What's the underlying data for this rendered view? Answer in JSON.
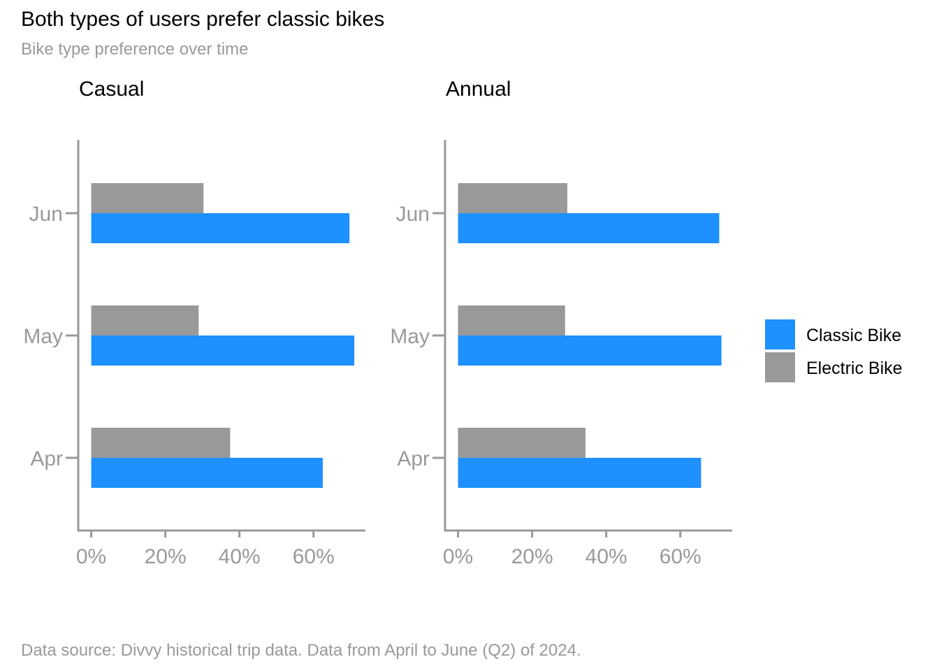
{
  "chart_data": {
    "type": "bar",
    "orientation": "horizontal",
    "title": "Both types of users prefer classic bikes",
    "subtitle": "Bike type preference over time",
    "caption": "Data source: Divvy historical trip data. Data from April to June (Q2) of 2024.",
    "categories": [
      "Apr",
      "May",
      "Jun"
    ],
    "x_ticks": [
      "0%",
      "20%",
      "40%",
      "60%"
    ],
    "x_tick_values": [
      0,
      20,
      40,
      60
    ],
    "xlim": [
      -3.5,
      74
    ],
    "legend_position": "right",
    "legend": [
      {
        "name": "Classic Bike",
        "color": "#1E90FF"
      },
      {
        "name": "Electric Bike",
        "color": "#999999"
      }
    ],
    "facets": [
      {
        "label": "Casual",
        "series": [
          {
            "name": "Classic Bike",
            "values": [
              62.5,
              71.0,
              69.7
            ]
          },
          {
            "name": "Electric Bike",
            "values": [
              37.5,
              29.0,
              30.3
            ]
          }
        ]
      },
      {
        "label": "Annual",
        "series": [
          {
            "name": "Classic Bike",
            "values": [
              65.6,
              71.1,
              70.5
            ]
          },
          {
            "name": "Electric Bike",
            "values": [
              34.4,
              28.9,
              29.5
            ]
          }
        ]
      }
    ]
  }
}
